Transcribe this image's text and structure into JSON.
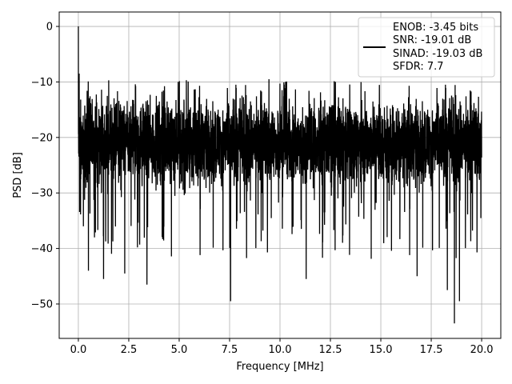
{
  "chart_data": {
    "type": "line",
    "title": "",
    "xlabel": "Frequency [MHz]",
    "ylabel": "PSD [dB]",
    "xlim": [
      -0.95,
      20.95
    ],
    "ylim": [
      -56.2,
      2.6
    ],
    "grid": true,
    "line_color": "#000000",
    "xticks": [
      {
        "value": 0.0,
        "label": "0.0"
      },
      {
        "value": 2.5,
        "label": "2.5"
      },
      {
        "value": 5.0,
        "label": "5.0"
      },
      {
        "value": 7.5,
        "label": "7.5"
      },
      {
        "value": 10.0,
        "label": "10.0"
      },
      {
        "value": 12.5,
        "label": "12.5"
      },
      {
        "value": 15.0,
        "label": "15.0"
      },
      {
        "value": 17.5,
        "label": "17.5"
      },
      {
        "value": 20.0,
        "label": "20.0"
      }
    ],
    "yticks": [
      {
        "value": 0,
        "label": "0"
      },
      {
        "value": -10,
        "label": "−10"
      },
      {
        "value": -20,
        "label": "−20"
      },
      {
        "value": -30,
        "label": "−30"
      },
      {
        "value": -40,
        "label": "−40"
      },
      {
        "value": -50,
        "label": "−50"
      }
    ],
    "legend": {
      "location": "upper right",
      "entries": [
        "ENOB: -3.45 bits",
        "SNR: -19.01 dB",
        "SINAD: -19.03 dB",
        "SFDR: 7.7"
      ]
    },
    "series": [
      {
        "x_start": 0.0,
        "x_end": 20.0,
        "noise_floor_mean_db": -21,
        "noise_band_db": [
          -31,
          -12
        ],
        "notable_points": [
          {
            "x": 0.0,
            "y": 0.0
          },
          {
            "x": 0.04,
            "y": -8.5
          },
          {
            "x": 0.08,
            "y": -22
          },
          {
            "x": 0.25,
            "y": -36
          },
          {
            "x": 0.5,
            "y": -44
          },
          {
            "x": 0.8,
            "y": -38
          },
          {
            "x": 1.25,
            "y": -45.5
          },
          {
            "x": 2.3,
            "y": -44.5
          },
          {
            "x": 3.4,
            "y": -46.5
          },
          {
            "x": 7.55,
            "y": -49.5
          },
          {
            "x": 11.3,
            "y": -45.5
          },
          {
            "x": 16.8,
            "y": -45
          },
          {
            "x": 18.3,
            "y": -47.5
          },
          {
            "x": 18.65,
            "y": -53.5
          },
          {
            "x": 18.9,
            "y": -49.5
          },
          {
            "x": 9.45,
            "y": -9.5
          },
          {
            "x": 4.95,
            "y": -10
          },
          {
            "x": 12.75,
            "y": -10
          }
        ]
      }
    ]
  }
}
